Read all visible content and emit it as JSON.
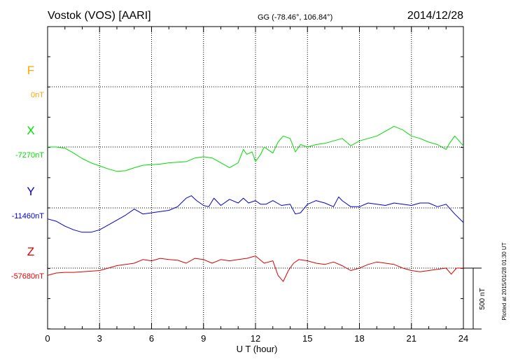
{
  "header": {
    "station": "Vostok (VOS)  [AARI]",
    "coords": "GG (-78.46°, 106.84°)",
    "date": "2014/12/28"
  },
  "side_note": "Plotted at 2015/01/28 01:30 UT",
  "scale_bar_label": "500 nT",
  "colors": {
    "F": "#ffa500",
    "X": "#00dd00",
    "Y": "#0000cc",
    "Z": "#dd0000",
    "axis": "#000000"
  },
  "chart_data": {
    "type": "line",
    "xlabel": "U T (hour)",
    "xlim": [
      0,
      24
    ],
    "x_ticks": [
      "0",
      "3",
      "6",
      "9",
      "12",
      "15",
      "18",
      "21",
      "24"
    ],
    "scale_bar_nT": 500,
    "series": [
      {
        "name": "F",
        "baseline_label": "0nT",
        "baseline_nT": 0,
        "x": [],
        "y": []
      },
      {
        "name": "X",
        "baseline_label": "-7270nT",
        "baseline_nT": -7270,
        "x": [
          0,
          0.5,
          1.0,
          1.5,
          2.0,
          2.5,
          3.0,
          3.5,
          4.0,
          4.5,
          5.0,
          5.5,
          6.0,
          6.5,
          7.0,
          7.5,
          8.0,
          8.5,
          9.0,
          9.5,
          10.0,
          10.5,
          11.0,
          11.3,
          11.5,
          11.8,
          12.0,
          12.3,
          12.5,
          12.8,
          13.0,
          13.3,
          13.6,
          14.0,
          14.3,
          14.6,
          15.0,
          15.5,
          16.0,
          16.5,
          17.0,
          17.5,
          18.0,
          18.5,
          19.0,
          19.5,
          20.0,
          20.5,
          21.0,
          21.5,
          22.0,
          22.5,
          23.0,
          23.2,
          23.5,
          24.0
        ],
        "y": [
          -7270,
          -7270,
          -7280,
          -7320,
          -7365,
          -7400,
          -7425,
          -7450,
          -7470,
          -7465,
          -7440,
          -7420,
          -7415,
          -7410,
          -7400,
          -7395,
          -7390,
          -7360,
          -7350,
          -7360,
          -7400,
          -7440,
          -7400,
          -7290,
          -7330,
          -7310,
          -7390,
          -7330,
          -7270,
          -7300,
          -7320,
          -7230,
          -7180,
          -7200,
          -7310,
          -7250,
          -7270,
          -7250,
          -7240,
          -7220,
          -7200,
          -7260,
          -7220,
          -7200,
          -7180,
          -7140,
          -7100,
          -7130,
          -7180,
          -7200,
          -7230,
          -7250,
          -7290,
          -7240,
          -7180,
          -7260
        ]
      },
      {
        "name": "Y",
        "baseline_label": "-11460nT",
        "baseline_nT": -11460,
        "x": [
          0,
          0.5,
          1.0,
          1.5,
          2.0,
          2.5,
          3.0,
          3.5,
          4.0,
          4.5,
          5.0,
          5.5,
          6.0,
          6.5,
          7.0,
          7.5,
          8.0,
          8.3,
          8.6,
          9.0,
          9.3,
          9.6,
          10.0,
          10.5,
          11.0,
          11.3,
          11.6,
          12.0,
          12.3,
          12.6,
          13.0,
          13.5,
          14.0,
          14.3,
          14.6,
          15.0,
          15.5,
          16.0,
          16.5,
          16.8,
          17.0,
          17.5,
          18.0,
          18.5,
          19.0,
          19.5,
          20.0,
          20.5,
          21.0,
          21.5,
          22.0,
          22.5,
          23.0,
          23.5,
          24.0
        ],
        "y": [
          -11550,
          -11570,
          -11610,
          -11640,
          -11660,
          -11660,
          -11640,
          -11600,
          -11560,
          -11520,
          -11470,
          -11510,
          -11500,
          -11490,
          -11480,
          -11450,
          -11380,
          -11360,
          -11400,
          -11440,
          -11450,
          -11380,
          -11440,
          -11390,
          -11420,
          -11380,
          -11420,
          -11400,
          -11430,
          -11430,
          -11400,
          -11440,
          -11430,
          -11510,
          -11500,
          -11430,
          -11400,
          -11420,
          -11450,
          -11370,
          -11400,
          -11450,
          -11450,
          -11420,
          -11430,
          -11440,
          -11420,
          -11430,
          -11440,
          -11420,
          -11420,
          -11450,
          -11430,
          -11510,
          -11580
        ]
      },
      {
        "name": "Z",
        "baseline_label": "-57680nT",
        "baseline_nT": -57680,
        "x": [
          0,
          0.5,
          1.0,
          1.5,
          2.0,
          2.5,
          3.0,
          3.5,
          4.0,
          4.5,
          5.0,
          5.5,
          6.0,
          6.5,
          7.0,
          7.5,
          8.0,
          8.5,
          9.0,
          9.5,
          10.0,
          10.5,
          11.0,
          11.5,
          12.0,
          12.5,
          13.0,
          13.3,
          13.6,
          13.9,
          14.2,
          14.5,
          15.0,
          15.5,
          16.0,
          16.5,
          17.0,
          17.5,
          18.0,
          18.5,
          19.0,
          19.5,
          20.0,
          20.5,
          21.0,
          21.5,
          22.0,
          22.5,
          23.0,
          23.3,
          23.6,
          24.0
        ],
        "y": [
          -57740,
          -57720,
          -57715,
          -57715,
          -57710,
          -57705,
          -57700,
          -57680,
          -57660,
          -57650,
          -57640,
          -57610,
          -57620,
          -57600,
          -57610,
          -57615,
          -57640,
          -57600,
          -57610,
          -57640,
          -57610,
          -57620,
          -57610,
          -57600,
          -57580,
          -57640,
          -57620,
          -57740,
          -57790,
          -57700,
          -57640,
          -57610,
          -57620,
          -57640,
          -57650,
          -57630,
          -57660,
          -57700,
          -57680,
          -57650,
          -57630,
          -57640,
          -57650,
          -57680,
          -57700,
          -57710,
          -57700,
          -57690,
          -57680,
          -57730,
          -57680,
          -57680
        ]
      }
    ]
  }
}
